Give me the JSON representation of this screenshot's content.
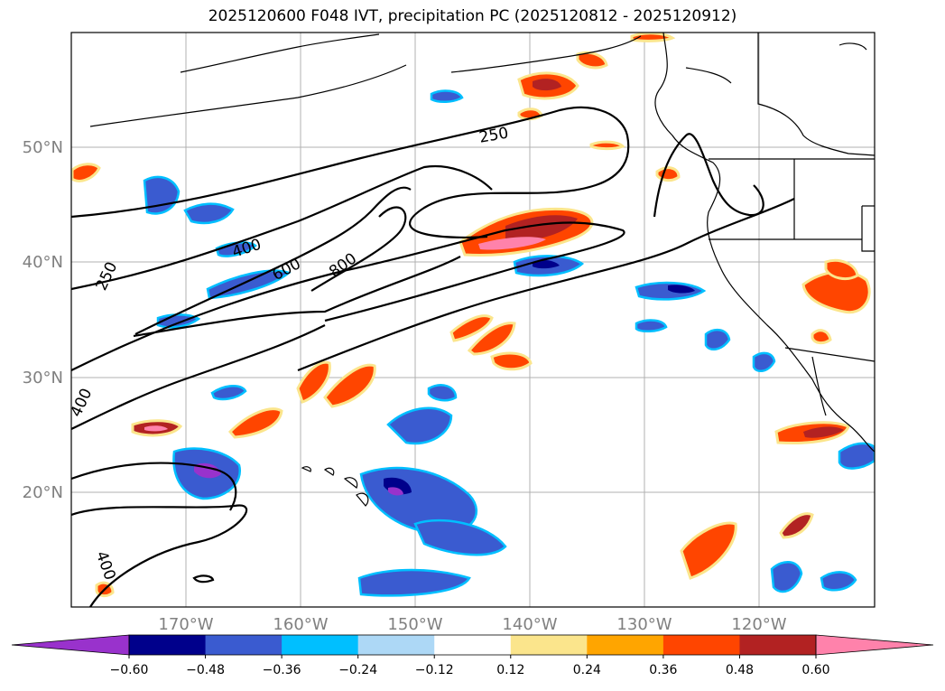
{
  "title": "2025120600 F048 IVT, precipitation PC (2025120812 - 2025120912)",
  "map": {
    "lat_labels": [
      "50°N",
      "40°N",
      "30°N",
      "20°N"
    ],
    "lon_labels": [
      "170°W",
      "160°W",
      "150°W",
      "140°W",
      "130°W",
      "120°W"
    ],
    "ivt_contour_labels": [
      "250",
      "400",
      "600",
      "800",
      "250",
      "400",
      "400"
    ]
  },
  "colorbar": {
    "ticks": [
      "−0.60",
      "−0.48",
      "−0.36",
      "−0.24",
      "−0.12",
      "0.12",
      "0.24",
      "0.36",
      "0.48",
      "0.60"
    ],
    "colors": [
      "#9932cc",
      "#00008b",
      "#3a5bd0",
      "#00bfff",
      "#add8f6",
      "#ffffff",
      "#fbe58c",
      "#ffa500",
      "#ff4500",
      "#b22222",
      "#ff82ab",
      "#ff82ab"
    ]
  }
}
